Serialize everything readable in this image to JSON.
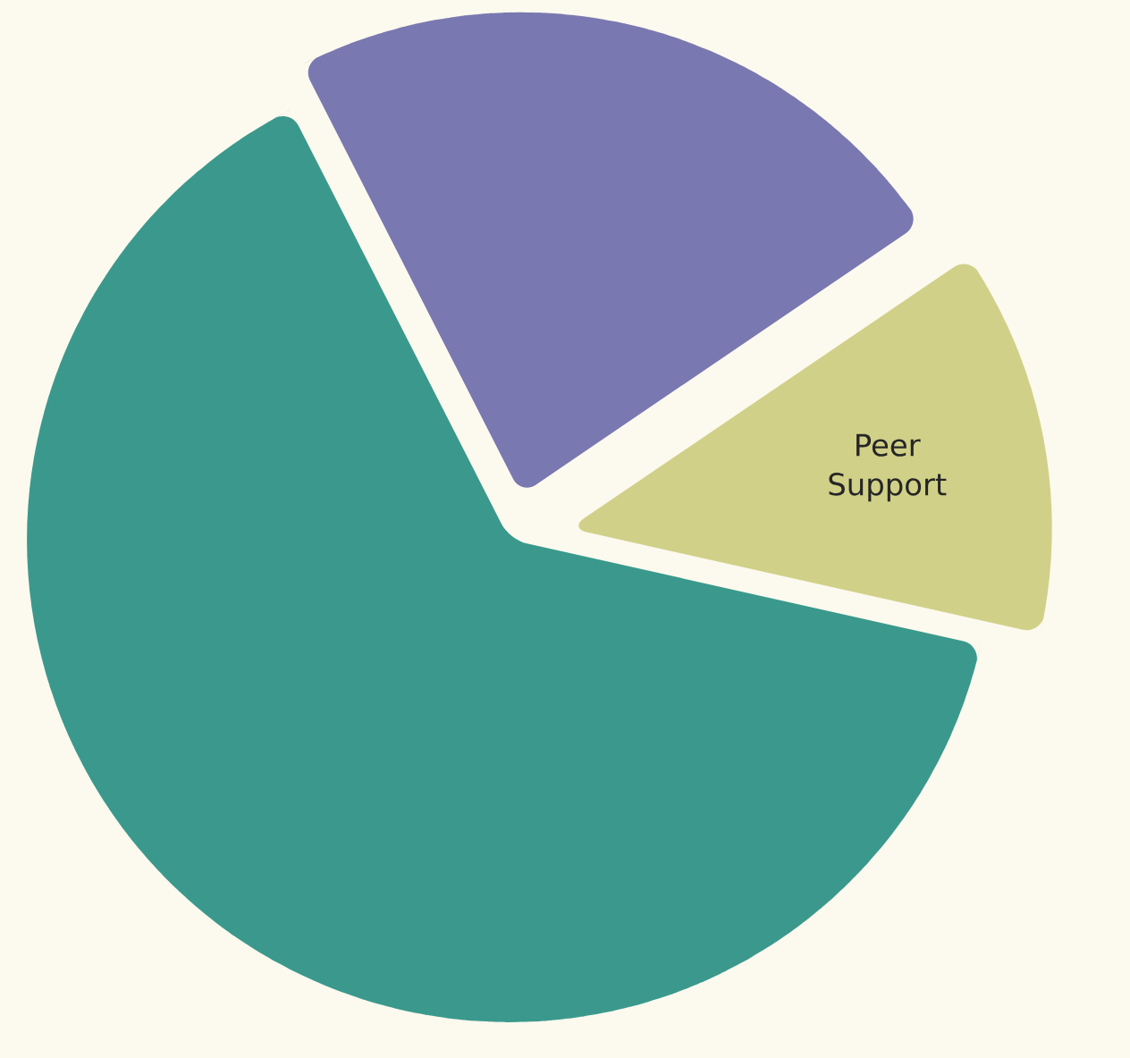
{
  "chart_data": {
    "type": "pie",
    "categories": [
      null,
      "Peer Support",
      null
    ],
    "values": [
      23,
      13,
      64
    ],
    "colors": [
      "#7a78b0",
      "#d0d088",
      "#3a998c"
    ]
  }
}
